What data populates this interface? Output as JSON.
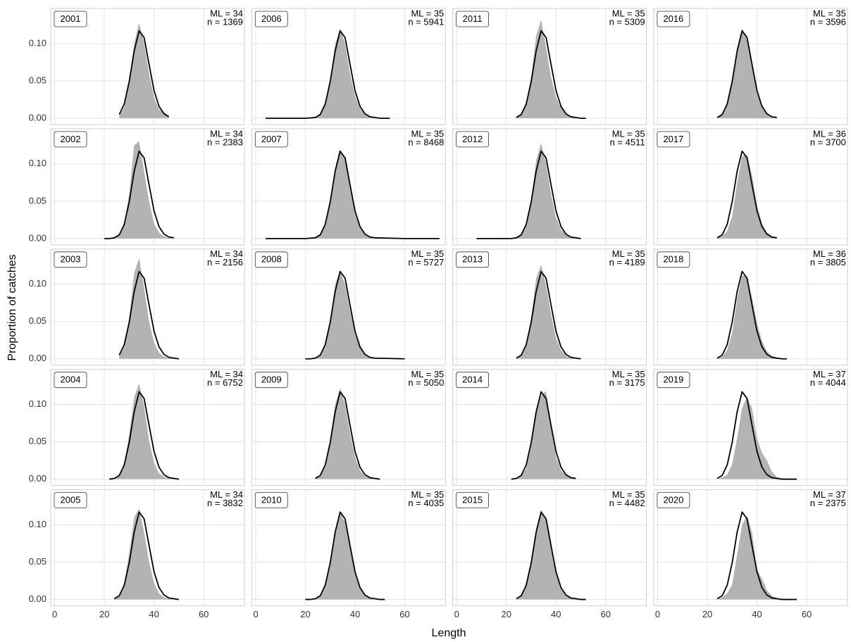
{
  "chart_data": {
    "type": "area",
    "xlabel": "Length",
    "ylabel": "Proportion of catches",
    "xlim": [
      -1.6,
      76.4
    ],
    "ylim": [
      -0.0085,
      0.147
    ],
    "xticks": [
      0,
      20,
      40,
      60
    ],
    "yticks": [
      {
        "value": 0,
        "label": "0.00"
      },
      {
        "value": 0.05,
        "label": "0.05"
      },
      {
        "value": 0.1,
        "label": "0.10"
      }
    ],
    "grid": true,
    "observed_color": "#b3b3b3",
    "fitted_color": "#000000",
    "panels": [
      {
        "label": "2001",
        "ml": "ML = 34",
        "n": "n = 1369",
        "x": [
          26,
          28,
          30,
          32,
          34,
          36,
          38,
          40,
          42,
          44,
          46
        ],
        "fitted": [
          0.005,
          0.019,
          0.049,
          0.09,
          0.117,
          0.108,
          0.072,
          0.037,
          0.016,
          0.006,
          0.002
        ],
        "observed": [
          0.003,
          0.015,
          0.05,
          0.1,
          0.128,
          0.1,
          0.06,
          0.028,
          0.012,
          0.008,
          0.003
        ]
      },
      {
        "label": "2002",
        "ml": "ML = 34",
        "n": "n = 2383",
        "x": [
          20,
          22,
          24,
          26,
          28,
          30,
          32,
          34,
          36,
          38,
          40,
          42,
          44,
          46,
          48
        ],
        "fitted": [
          0,
          0,
          0.001,
          0.005,
          0.019,
          0.049,
          0.09,
          0.117,
          0.108,
          0.072,
          0.037,
          0.016,
          0.006,
          0.002,
          0.001
        ],
        "observed": [
          0,
          0,
          0.001,
          0.004,
          0.018,
          0.06,
          0.125,
          0.13,
          0.09,
          0.05,
          0.02,
          0.008,
          0.003,
          0.001,
          0
        ]
      },
      {
        "label": "2003",
        "ml": "ML = 34",
        "n": "n = 2156",
        "x": [
          26,
          28,
          30,
          32,
          34,
          36,
          38,
          40,
          42,
          44,
          46,
          48,
          50
        ],
        "fitted": [
          0.005,
          0.019,
          0.049,
          0.09,
          0.117,
          0.108,
          0.072,
          0.037,
          0.016,
          0.006,
          0.002,
          0.001,
          0
        ],
        "observed": [
          0.003,
          0.016,
          0.055,
          0.115,
          0.135,
          0.095,
          0.05,
          0.022,
          0.008,
          0.003,
          0.001,
          0,
          0
        ]
      },
      {
        "label": "2004",
        "ml": "ML = 34",
        "n": "n = 6752",
        "x": [
          22,
          24,
          26,
          28,
          30,
          32,
          34,
          36,
          38,
          40,
          42,
          44,
          46,
          48,
          50
        ],
        "fitted": [
          0,
          0.001,
          0.005,
          0.019,
          0.049,
          0.09,
          0.117,
          0.108,
          0.072,
          0.037,
          0.016,
          0.006,
          0.002,
          0.001,
          0
        ],
        "observed": [
          0,
          0.001,
          0.004,
          0.02,
          0.06,
          0.11,
          0.128,
          0.098,
          0.052,
          0.022,
          0.008,
          0.003,
          0.001,
          0,
          0
        ]
      },
      {
        "label": "2005",
        "ml": "ML = 34",
        "n": "n = 3832",
        "x": [
          24,
          26,
          28,
          30,
          32,
          34,
          36,
          38,
          40,
          42,
          44,
          46,
          48,
          50
        ],
        "fitted": [
          0.001,
          0.005,
          0.019,
          0.049,
          0.09,
          0.117,
          0.108,
          0.072,
          0.037,
          0.016,
          0.006,
          0.002,
          0.001,
          0
        ],
        "observed": [
          0.001,
          0.004,
          0.022,
          0.062,
          0.11,
          0.122,
          0.09,
          0.05,
          0.022,
          0.008,
          0.003,
          0.001,
          0,
          0
        ]
      },
      {
        "label": "2006",
        "ml": "ML = 35",
        "n": "n = 5941",
        "x": [
          4,
          20,
          24,
          26,
          28,
          30,
          32,
          34,
          36,
          38,
          40,
          42,
          44,
          46,
          48,
          50,
          52,
          54
        ],
        "fitted": [
          0,
          0,
          0.001,
          0.005,
          0.019,
          0.049,
          0.09,
          0.117,
          0.108,
          0.072,
          0.037,
          0.016,
          0.006,
          0.002,
          0.001,
          0,
          0,
          0
        ],
        "observed": [
          0,
          0,
          0.001,
          0.004,
          0.018,
          0.05,
          0.1,
          0.12,
          0.1,
          0.06,
          0.03,
          0.013,
          0.005,
          0.002,
          0.001,
          0,
          0,
          0
        ]
      },
      {
        "label": "2007",
        "ml": "ML = 35",
        "n": "n = 8468",
        "x": [
          4,
          20,
          24,
          26,
          28,
          30,
          32,
          34,
          36,
          38,
          40,
          42,
          44,
          46,
          48,
          60,
          74
        ],
        "fitted": [
          0,
          0,
          0.001,
          0.005,
          0.019,
          0.049,
          0.09,
          0.117,
          0.108,
          0.072,
          0.037,
          0.016,
          0.006,
          0.002,
          0.001,
          0,
          0
        ],
        "observed": [
          0,
          0,
          0.001,
          0.004,
          0.018,
          0.05,
          0.095,
          0.12,
          0.105,
          0.068,
          0.034,
          0.014,
          0.005,
          0.002,
          0.001,
          0,
          0
        ]
      },
      {
        "label": "2008",
        "ml": "ML = 35",
        "n": "n = 5727",
        "x": [
          20,
          22,
          24,
          26,
          28,
          30,
          32,
          34,
          36,
          38,
          40,
          42,
          44,
          46,
          48,
          60
        ],
        "fitted": [
          0,
          0,
          0.001,
          0.005,
          0.019,
          0.049,
          0.09,
          0.117,
          0.108,
          0.072,
          0.037,
          0.016,
          0.006,
          0.002,
          0.001,
          0
        ],
        "observed": [
          0,
          0,
          0.001,
          0.004,
          0.018,
          0.052,
          0.1,
          0.118,
          0.1,
          0.065,
          0.033,
          0.015,
          0.006,
          0.002,
          0.001,
          0
        ]
      },
      {
        "label": "2009",
        "ml": "ML = 35",
        "n": "n = 5050",
        "x": [
          24,
          26,
          28,
          30,
          32,
          34,
          36,
          38,
          40,
          42,
          44,
          46,
          48,
          50
        ],
        "fitted": [
          0.001,
          0.005,
          0.019,
          0.049,
          0.09,
          0.117,
          0.108,
          0.072,
          0.037,
          0.016,
          0.006,
          0.002,
          0.001,
          0
        ],
        "observed": [
          0.001,
          0.004,
          0.018,
          0.052,
          0.1,
          0.122,
          0.1,
          0.062,
          0.03,
          0.012,
          0.004,
          0.001,
          0,
          0
        ]
      },
      {
        "label": "2010",
        "ml": "ML = 35",
        "n": "n = 4035",
        "x": [
          20,
          22,
          24,
          26,
          28,
          30,
          32,
          34,
          36,
          38,
          40,
          42,
          44,
          46,
          48,
          50,
          52
        ],
        "fitted": [
          0,
          0,
          0.001,
          0.005,
          0.019,
          0.049,
          0.09,
          0.117,
          0.108,
          0.072,
          0.037,
          0.016,
          0.006,
          0.002,
          0.001,
          0,
          0
        ],
        "observed": [
          0,
          0,
          0.001,
          0.006,
          0.022,
          0.05,
          0.092,
          0.116,
          0.104,
          0.068,
          0.034,
          0.015,
          0.006,
          0.002,
          0.001,
          0,
          0
        ]
      },
      {
        "label": "2011",
        "ml": "ML = 35",
        "n": "n = 5309",
        "x": [
          24,
          26,
          28,
          30,
          32,
          34,
          36,
          38,
          40,
          42,
          44,
          46,
          48,
          50,
          52
        ],
        "fitted": [
          0.001,
          0.005,
          0.019,
          0.049,
          0.09,
          0.117,
          0.108,
          0.072,
          0.037,
          0.016,
          0.006,
          0.002,
          0.001,
          0,
          0
        ],
        "observed": [
          0.001,
          0.004,
          0.02,
          0.055,
          0.11,
          0.132,
          0.095,
          0.055,
          0.028,
          0.014,
          0.006,
          0.002,
          0.001,
          0,
          0
        ]
      },
      {
        "label": "2012",
        "ml": "ML = 35",
        "n": "n = 4511",
        "x": [
          8,
          20,
          22,
          24,
          26,
          28,
          30,
          32,
          34,
          36,
          38,
          40,
          42,
          44,
          46,
          48,
          50
        ],
        "fitted": [
          0,
          0,
          0,
          0.001,
          0.005,
          0.019,
          0.049,
          0.09,
          0.117,
          0.108,
          0.072,
          0.037,
          0.016,
          0.006,
          0.002,
          0.001,
          0
        ],
        "observed": [
          0,
          0,
          0,
          0.001,
          0.004,
          0.018,
          0.052,
          0.105,
          0.128,
          0.1,
          0.06,
          0.028,
          0.012,
          0.005,
          0.002,
          0.001,
          0
        ]
      },
      {
        "label": "2013",
        "ml": "ML = 35",
        "n": "n = 4189",
        "x": [
          24,
          26,
          28,
          30,
          32,
          34,
          36,
          38,
          40,
          42,
          44,
          46,
          48,
          50
        ],
        "fitted": [
          0.001,
          0.005,
          0.019,
          0.049,
          0.09,
          0.117,
          0.108,
          0.072,
          0.037,
          0.016,
          0.006,
          0.002,
          0.001,
          0
        ],
        "observed": [
          0.001,
          0.004,
          0.018,
          0.055,
          0.108,
          0.126,
          0.098,
          0.06,
          0.028,
          0.012,
          0.004,
          0.001,
          0,
          0
        ]
      },
      {
        "label": "2014",
        "ml": "ML = 35",
        "n": "n = 3175",
        "x": [
          22,
          24,
          26,
          28,
          30,
          32,
          34,
          36,
          38,
          40,
          42,
          44,
          46,
          48
        ],
        "fitted": [
          0,
          0.001,
          0.005,
          0.019,
          0.049,
          0.09,
          0.117,
          0.108,
          0.072,
          0.037,
          0.016,
          0.006,
          0.002,
          0.001
        ],
        "observed": [
          0,
          0.001,
          0.004,
          0.015,
          0.045,
          0.09,
          0.112,
          0.118,
          0.07,
          0.03,
          0.012,
          0.005,
          0.002,
          0.001
        ]
      },
      {
        "label": "2015",
        "ml": "ML = 35",
        "n": "n = 4482",
        "x": [
          24,
          26,
          28,
          30,
          32,
          34,
          36,
          38,
          40,
          42,
          44,
          46,
          48,
          50,
          52
        ],
        "fitted": [
          0.001,
          0.005,
          0.019,
          0.049,
          0.09,
          0.117,
          0.108,
          0.072,
          0.037,
          0.016,
          0.006,
          0.002,
          0.001,
          0,
          0
        ],
        "observed": [
          0.001,
          0.004,
          0.018,
          0.05,
          0.095,
          0.12,
          0.105,
          0.068,
          0.034,
          0.014,
          0.005,
          0.002,
          0.001,
          0,
          0
        ]
      },
      {
        "label": "2016",
        "ml": "ML = 35",
        "n": "n = 3596",
        "x": [
          24,
          26,
          28,
          30,
          32,
          34,
          36,
          38,
          40,
          42,
          44,
          46,
          48
        ],
        "fitted": [
          0.001,
          0.005,
          0.019,
          0.049,
          0.09,
          0.117,
          0.108,
          0.072,
          0.037,
          0.016,
          0.006,
          0.002,
          0.001
        ],
        "observed": [
          0.001,
          0.004,
          0.018,
          0.05,
          0.095,
          0.12,
          0.105,
          0.068,
          0.034,
          0.014,
          0.005,
          0.002,
          0.001
        ]
      },
      {
        "label": "2017",
        "ml": "ML = 36",
        "n": "n = 3700",
        "x": [
          24,
          26,
          28,
          30,
          32,
          34,
          36,
          38,
          40,
          42,
          44,
          46,
          48
        ],
        "fitted": [
          0.001,
          0.005,
          0.019,
          0.049,
          0.09,
          0.117,
          0.108,
          0.072,
          0.037,
          0.016,
          0.006,
          0.002,
          0.001
        ],
        "observed": [
          0.001,
          0.003,
          0.01,
          0.03,
          0.075,
          0.11,
          0.112,
          0.085,
          0.045,
          0.02,
          0.008,
          0.003,
          0.001
        ]
      },
      {
        "label": "2018",
        "ml": "ML = 36",
        "n": "n = 3805",
        "x": [
          24,
          26,
          28,
          30,
          32,
          34,
          36,
          38,
          40,
          42,
          44,
          46,
          48,
          50,
          52
        ],
        "fitted": [
          0.001,
          0.005,
          0.019,
          0.049,
          0.09,
          0.117,
          0.108,
          0.072,
          0.037,
          0.016,
          0.006,
          0.002,
          0.001,
          0,
          0
        ],
        "observed": [
          0.001,
          0.003,
          0.012,
          0.035,
          0.08,
          0.112,
          0.11,
          0.082,
          0.048,
          0.024,
          0.01,
          0.004,
          0.002,
          0.001,
          0
        ]
      },
      {
        "label": "2019",
        "ml": "ML = 37",
        "n": "n = 4044",
        "x": [
          24,
          26,
          28,
          30,
          32,
          34,
          36,
          38,
          40,
          42,
          44,
          46,
          48,
          50,
          52,
          54,
          56
        ],
        "fitted": [
          0.001,
          0.005,
          0.019,
          0.049,
          0.09,
          0.117,
          0.108,
          0.072,
          0.037,
          0.016,
          0.006,
          0.002,
          0.001,
          0,
          0,
          0,
          0
        ],
        "observed": [
          0,
          0.002,
          0.006,
          0.02,
          0.055,
          0.095,
          0.11,
          0.095,
          0.055,
          0.035,
          0.025,
          0.01,
          0.003,
          0.001,
          0,
          0,
          0
        ]
      },
      {
        "label": "2020",
        "ml": "ML = 37",
        "n": "n = 2375",
        "x": [
          24,
          26,
          28,
          30,
          32,
          34,
          36,
          38,
          40,
          42,
          44,
          46,
          48,
          50,
          52,
          54,
          56
        ],
        "fitted": [
          0.001,
          0.005,
          0.019,
          0.049,
          0.09,
          0.117,
          0.108,
          0.072,
          0.037,
          0.016,
          0.006,
          0.002,
          0.001,
          0,
          0,
          0,
          0
        ],
        "observed": [
          0,
          0.003,
          0.008,
          0.02,
          0.06,
          0.1,
          0.112,
          0.09,
          0.04,
          0.028,
          0.012,
          0.005,
          0.002,
          0.001,
          0,
          0,
          0
        ]
      }
    ]
  }
}
